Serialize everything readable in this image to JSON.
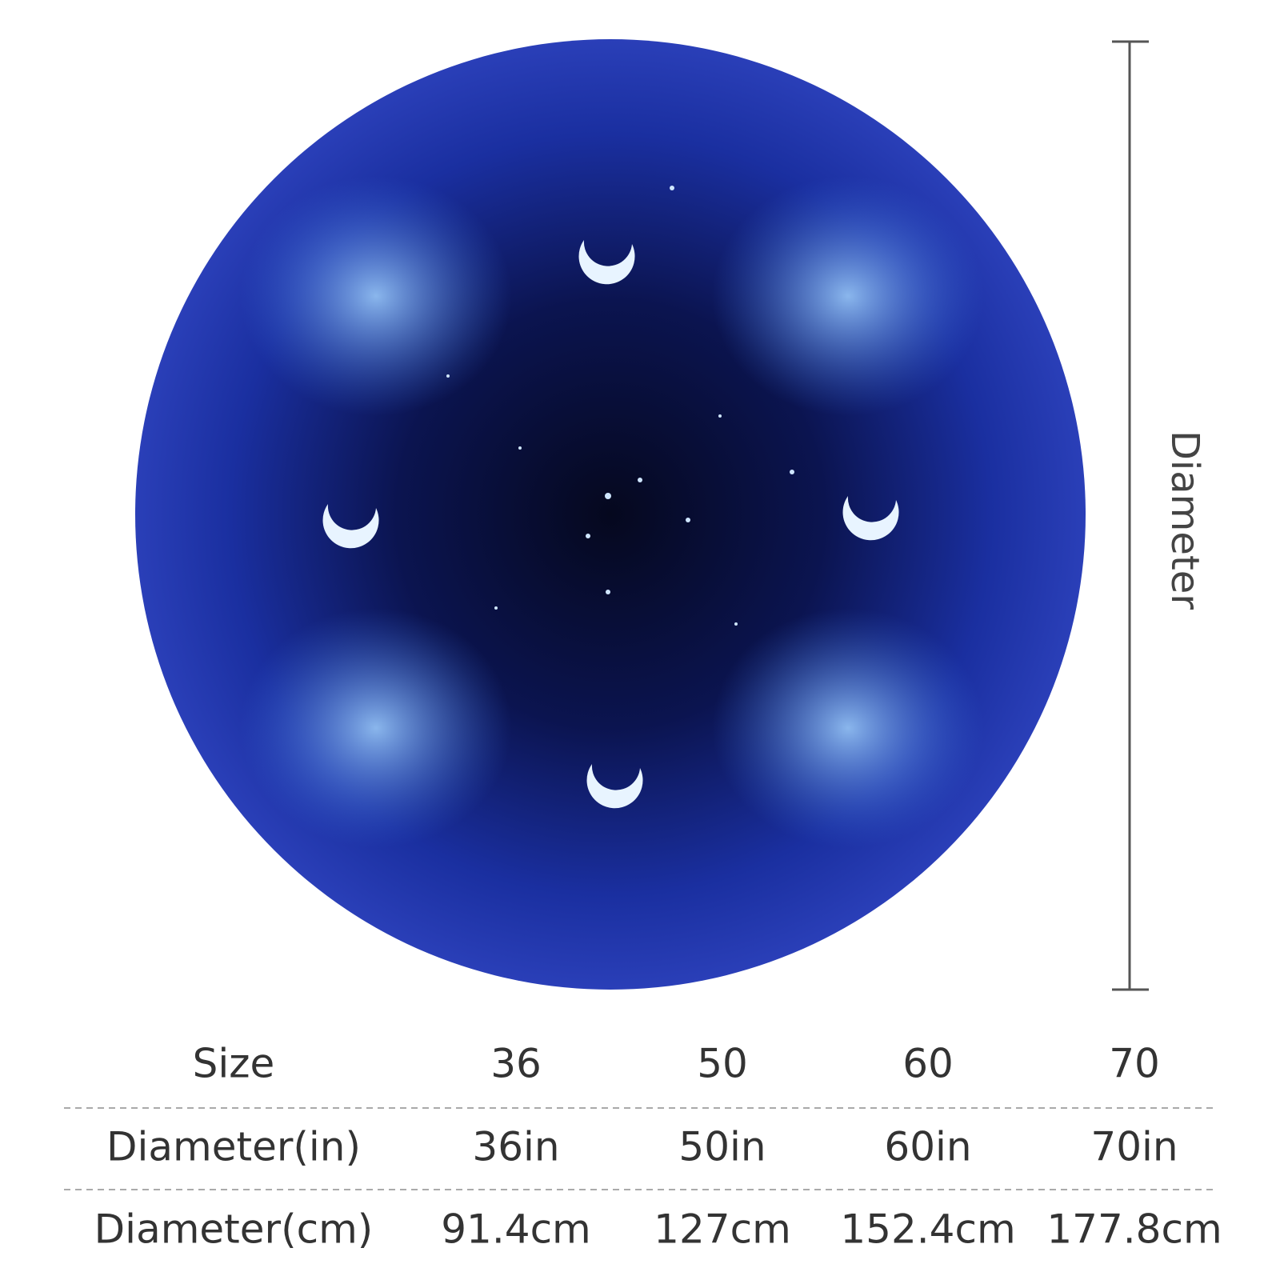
{
  "dimension_label": "Diameter",
  "table": {
    "rows": [
      [
        "Size",
        "36",
        "50",
        "60",
        "70"
      ],
      [
        "Diameter(in)",
        "36in",
        "50in",
        "60in",
        "70in"
      ],
      [
        "Diameter(cm)",
        "91.4cm",
        "127cm",
        "152.4cm",
        "177.8cm"
      ]
    ]
  }
}
